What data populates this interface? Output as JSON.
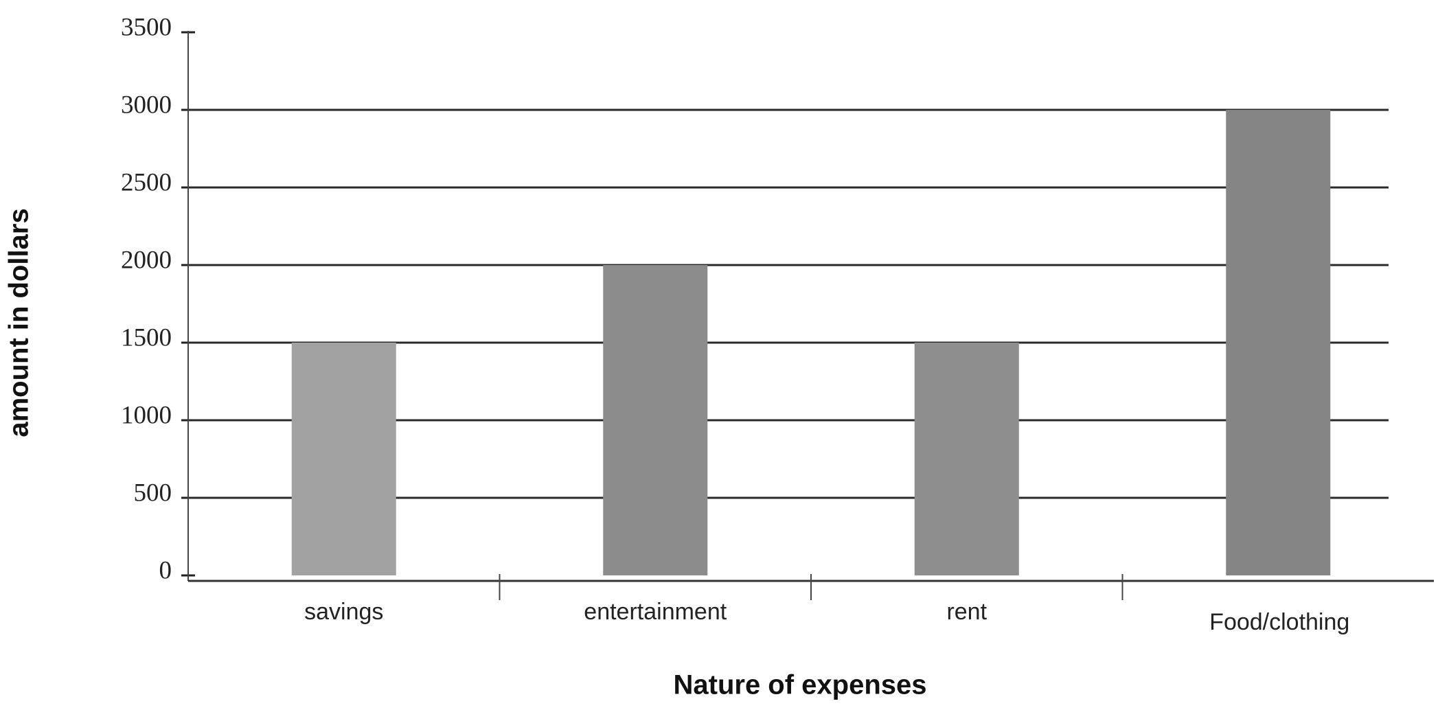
{
  "chart_data": {
    "type": "bar",
    "x_label": "Nature of expenses",
    "y_label": "amount in dollars",
    "categories": [
      "savings",
      "entertainment",
      "rent",
      "Food/clothing"
    ],
    "values": [
      1500,
      2000,
      1500,
      3000
    ],
    "colors": [
      "#a2a2a2",
      "#8c8c8c",
      "#8e8e8e",
      "#858585"
    ],
    "ylim": [
      0,
      3500
    ],
    "yticks": [
      0,
      500,
      1000,
      1500,
      2000,
      2500,
      3000,
      3500
    ],
    "grid": true
  }
}
